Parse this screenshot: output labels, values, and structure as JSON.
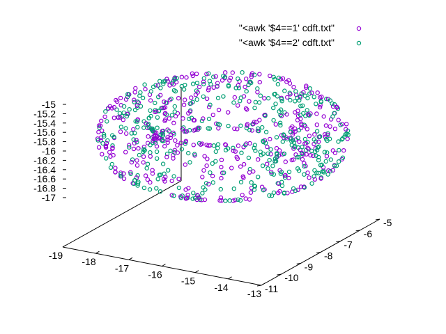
{
  "chart_data": {
    "type": "scatter3d",
    "title": "",
    "xlabel": "",
    "ylabel": "",
    "zlabel": "",
    "legend_position": "top-right",
    "grid": false,
    "xlim": [
      -19,
      -13
    ],
    "ylim": [
      -11,
      -5
    ],
    "zlim": [
      -17,
      -15
    ],
    "x_ticks": [
      "-19",
      "-18",
      "-17",
      "-16",
      "-15",
      "-14",
      "-13"
    ],
    "y_ticks": [
      "-11",
      "-10",
      "-9",
      "-8",
      "-7",
      "-6",
      "-5"
    ],
    "z_ticks": [
      "-15",
      "-15.2",
      "-15.4",
      "-15.6",
      "-15.8",
      "-16",
      "-16.2",
      "-16.4",
      "-16.6",
      "-16.8",
      "-17"
    ],
    "torus": {
      "center": [
        -16.15,
        -8.0,
        -16.0
      ],
      "major_radius": 2.05,
      "minor_radius": 0.55,
      "points_per_series": 420
    },
    "series": [
      {
        "name": "\"<awk '$4==1' cdft.txt\"",
        "color": "#9400d3",
        "marker": "circle"
      },
      {
        "name": "\"<awk '$4==2' cdft.txt\"",
        "color": "#009e73",
        "marker": "circle"
      }
    ]
  }
}
